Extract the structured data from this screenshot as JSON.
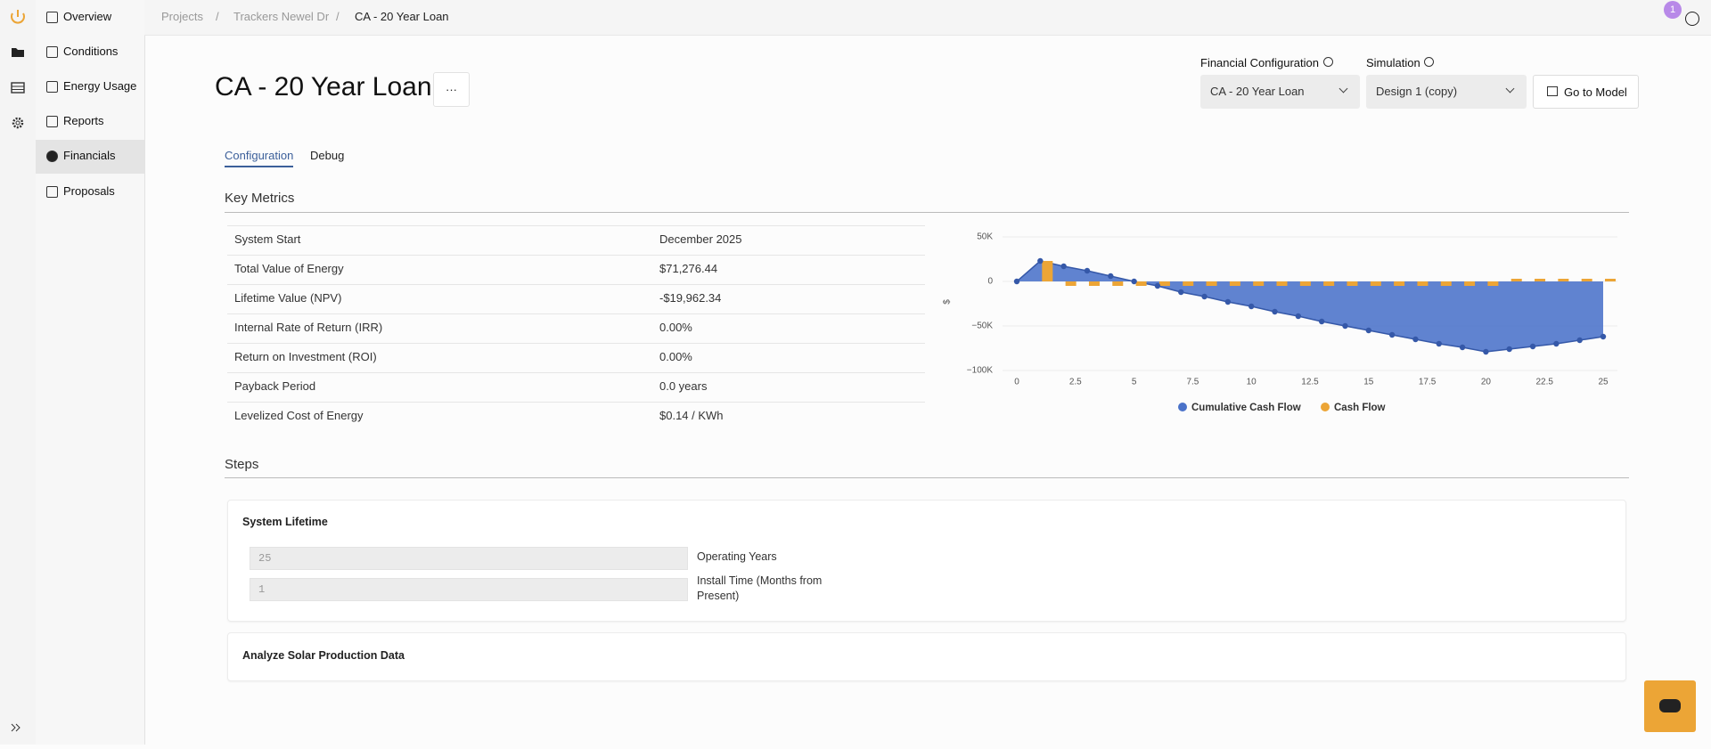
{
  "breadcrumb": [
    "Projects",
    "/",
    "Trackers Newel Dr",
    "/",
    "CA - 20 Year Loan"
  ],
  "badge": "1",
  "nav": [
    "Overview",
    "Conditions",
    "Energy Usage",
    "Reports",
    "Financials",
    "Proposals"
  ],
  "header": {
    "title": "CA - 20 Year Loan",
    "menu": "···"
  },
  "controls": {
    "financial_configuration": {
      "label": "Financial Configuration",
      "value": "CA - 20 Year Loan"
    },
    "simulation": {
      "label": "Simulation",
      "value": "Design 1 (copy)"
    },
    "button": "Go to Model"
  },
  "tabs": [
    "Configuration",
    "Debug"
  ],
  "key_metrics": {
    "title": "Key Metrics",
    "rows": [
      [
        "System Start",
        "December 2025"
      ],
      [
        "Total Value of Energy",
        "$71,276.44"
      ],
      [
        "Lifetime Value (NPV)",
        "-$19,962.34"
      ],
      [
        "Internal Rate of Return (IRR)",
        "0.00%"
      ],
      [
        "Return on Investment (ROI)",
        "0.00%"
      ],
      [
        "Payback Period",
        "0.0 years"
      ],
      [
        "Levelized Cost of Energy",
        "$0.14 / KWh"
      ]
    ]
  },
  "chart_data": {
    "type": "line",
    "y_label": "$",
    "x": [
      0,
      1,
      2,
      3,
      4,
      5,
      6,
      7,
      8,
      9,
      10,
      11,
      12,
      13,
      14,
      15,
      16,
      17,
      18,
      19,
      20,
      21,
      22,
      23,
      24,
      25
    ],
    "xlim": [
      0,
      25
    ],
    "xticks": [
      0,
      2.5,
      5,
      7.5,
      10,
      12.5,
      15,
      17.5,
      20,
      22.5,
      25
    ],
    "ylim": [
      -100000,
      50000
    ],
    "yticks": [
      {
        "value": -100000,
        "label": "−100K"
      },
      {
        "value": -50000,
        "label": "−50K"
      },
      0,
      {
        "value": 50000,
        "label": "50K"
      }
    ],
    "grid": true,
    "series": [
      {
        "name": "Cumulative Cash Flow",
        "color": "#4a72c9",
        "values": [
          0,
          23000,
          17000,
          12000,
          6000,
          0,
          -5000,
          -12000,
          -17000,
          -23000,
          -28000,
          -34000,
          -39000,
          -45000,
          -50000,
          -55000,
          -60000,
          -65000,
          -70000,
          -74000,
          -79000,
          -76000,
          -73000,
          -70000,
          -66000,
          -62000
        ]
      },
      {
        "name": "Cash Flow",
        "color": "#eca536",
        "values": [
          0,
          23000,
          -5000,
          -5000,
          -5000,
          -5000,
          -5000,
          -5000,
          -5000,
          -5000,
          -5000,
          -5000,
          -5000,
          -5000,
          -5000,
          -5000,
          -5000,
          -5000,
          -5000,
          -5000,
          -5000,
          3000,
          3000,
          3000,
          3000,
          3000
        ]
      }
    ]
  },
  "steps": {
    "title": "Steps",
    "cards": [
      {
        "title": "System Lifetime",
        "fields": [
          {
            "value": "25",
            "label": "Operating Years"
          },
          {
            "value": "1",
            "label": "Install Time (Months from Present)"
          }
        ]
      },
      {
        "title": "Analyze Solar Production Data"
      }
    ]
  }
}
